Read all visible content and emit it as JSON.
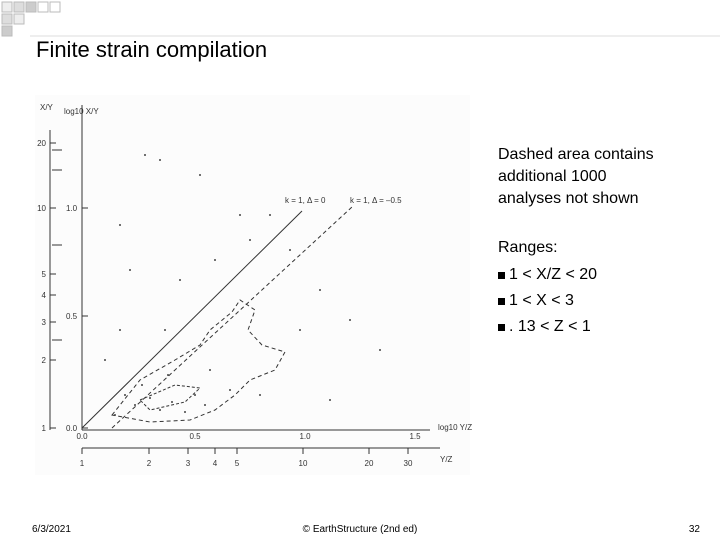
{
  "header": {
    "title": "Finite strain compilation"
  },
  "figure": {
    "left_axis_label": "X/Y",
    "inner_axis_label": "log10 X/Y",
    "left_ticks": [
      "20",
      "10",
      "5",
      "4",
      "3",
      "2",
      "1"
    ],
    "inner_ticks": [
      "1.0",
      "0.5",
      "0.0"
    ],
    "log_ticks": [
      "0.0",
      "0.5",
      "1.0",
      "1.5"
    ],
    "ratio_ticks": [
      "1",
      "2",
      "3",
      "4",
      "5",
      "10",
      "20",
      "30"
    ],
    "bottom_log_label": "log10 Y/Z",
    "bottom_ratio_label": "Y/Z",
    "line_labels": [
      "k = 1, Δ = 0",
      "k = 1, Δ = –0.5"
    ]
  },
  "notes": {
    "lines": [
      "Dashed area contains",
      "additional 1000",
      "analyses not shown"
    ],
    "ranges_heading": "Ranges:",
    "bullets": [
      "1 < X/Z < 20",
      "1 < X < 3",
      ". 13 < Z < 1"
    ]
  },
  "footer": {
    "date": "6/3/2021",
    "credit": "© EarthStructure (2nd ed)",
    "page": "32"
  }
}
